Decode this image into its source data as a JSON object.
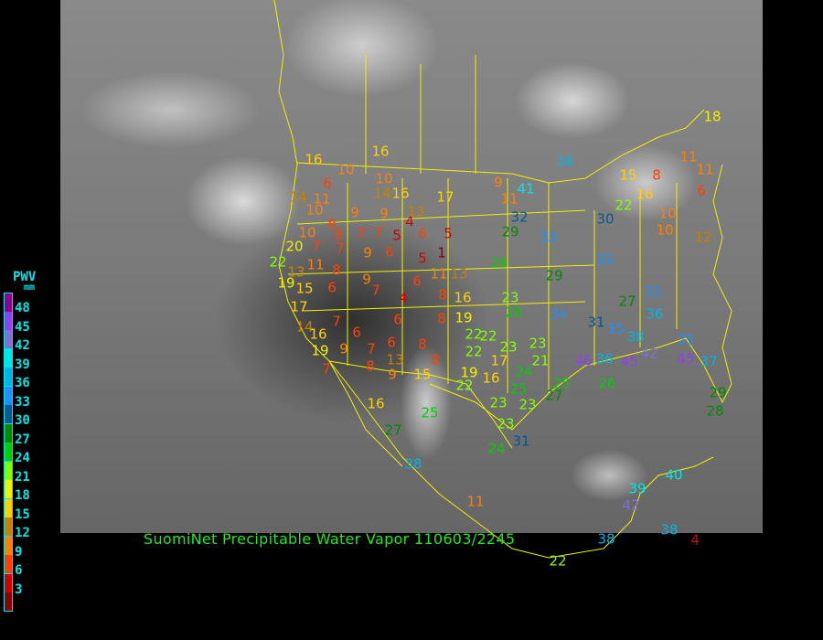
{
  "title": "SuomiNet Precipitable Water Vapor 110603/2245",
  "legend": {
    "title": "PWV",
    "unit": "mm",
    "labels": [
      "48",
      "45",
      "42",
      "39",
      "36",
      "33",
      "30",
      "27",
      "24",
      "21",
      "18",
      "15",
      "12",
      "9",
      "6",
      "3"
    ],
    "colors": [
      "#900090",
      "#9040f0",
      "#8070d0",
      "#00e6e6",
      "#00b4e6",
      "#1e90ff",
      "#005a96",
      "#008c00",
      "#00d000",
      "#80ff00",
      "#f0f000",
      "#ffd000",
      "#c88000",
      "#ff8000",
      "#ff4000",
      "#d40000",
      "#8b0000"
    ]
  },
  "stations": [
    16,
    10,
    10,
    16,
    6,
    14,
    11,
    14,
    16,
    17,
    9,
    10,
    8,
    9,
    13,
    9,
    4,
    7,
    7,
    5,
    6,
    5,
    10,
    8,
    20,
    7,
    7,
    6,
    5,
    1,
    22,
    13,
    11,
    8,
    9,
    9,
    7,
    6,
    11,
    13,
    19,
    15,
    6,
    4,
    8,
    16,
    17,
    7,
    6,
    8,
    19,
    14,
    6,
    7,
    6,
    8,
    16,
    19,
    9,
    13,
    8,
    7,
    8,
    9,
    15,
    19,
    16,
    17,
    22,
    22,
    22,
    23,
    23,
    21,
    24,
    25,
    25,
    27,
    22,
    23,
    23,
    23,
    31,
    24,
    25,
    16,
    27,
    38,
    11,
    38,
    22,
    39,
    40,
    42,
    38,
    4,
    23,
    26,
    26,
    29,
    29,
    32,
    41,
    11,
    36,
    15,
    8,
    11,
    11,
    18,
    6,
    22,
    16,
    30,
    33,
    33,
    10,
    10,
    12,
    27,
    33,
    36,
    34,
    31,
    35,
    38,
    42,
    46,
    36,
    45,
    35,
    45,
    37,
    26,
    29,
    28
  ]
}
